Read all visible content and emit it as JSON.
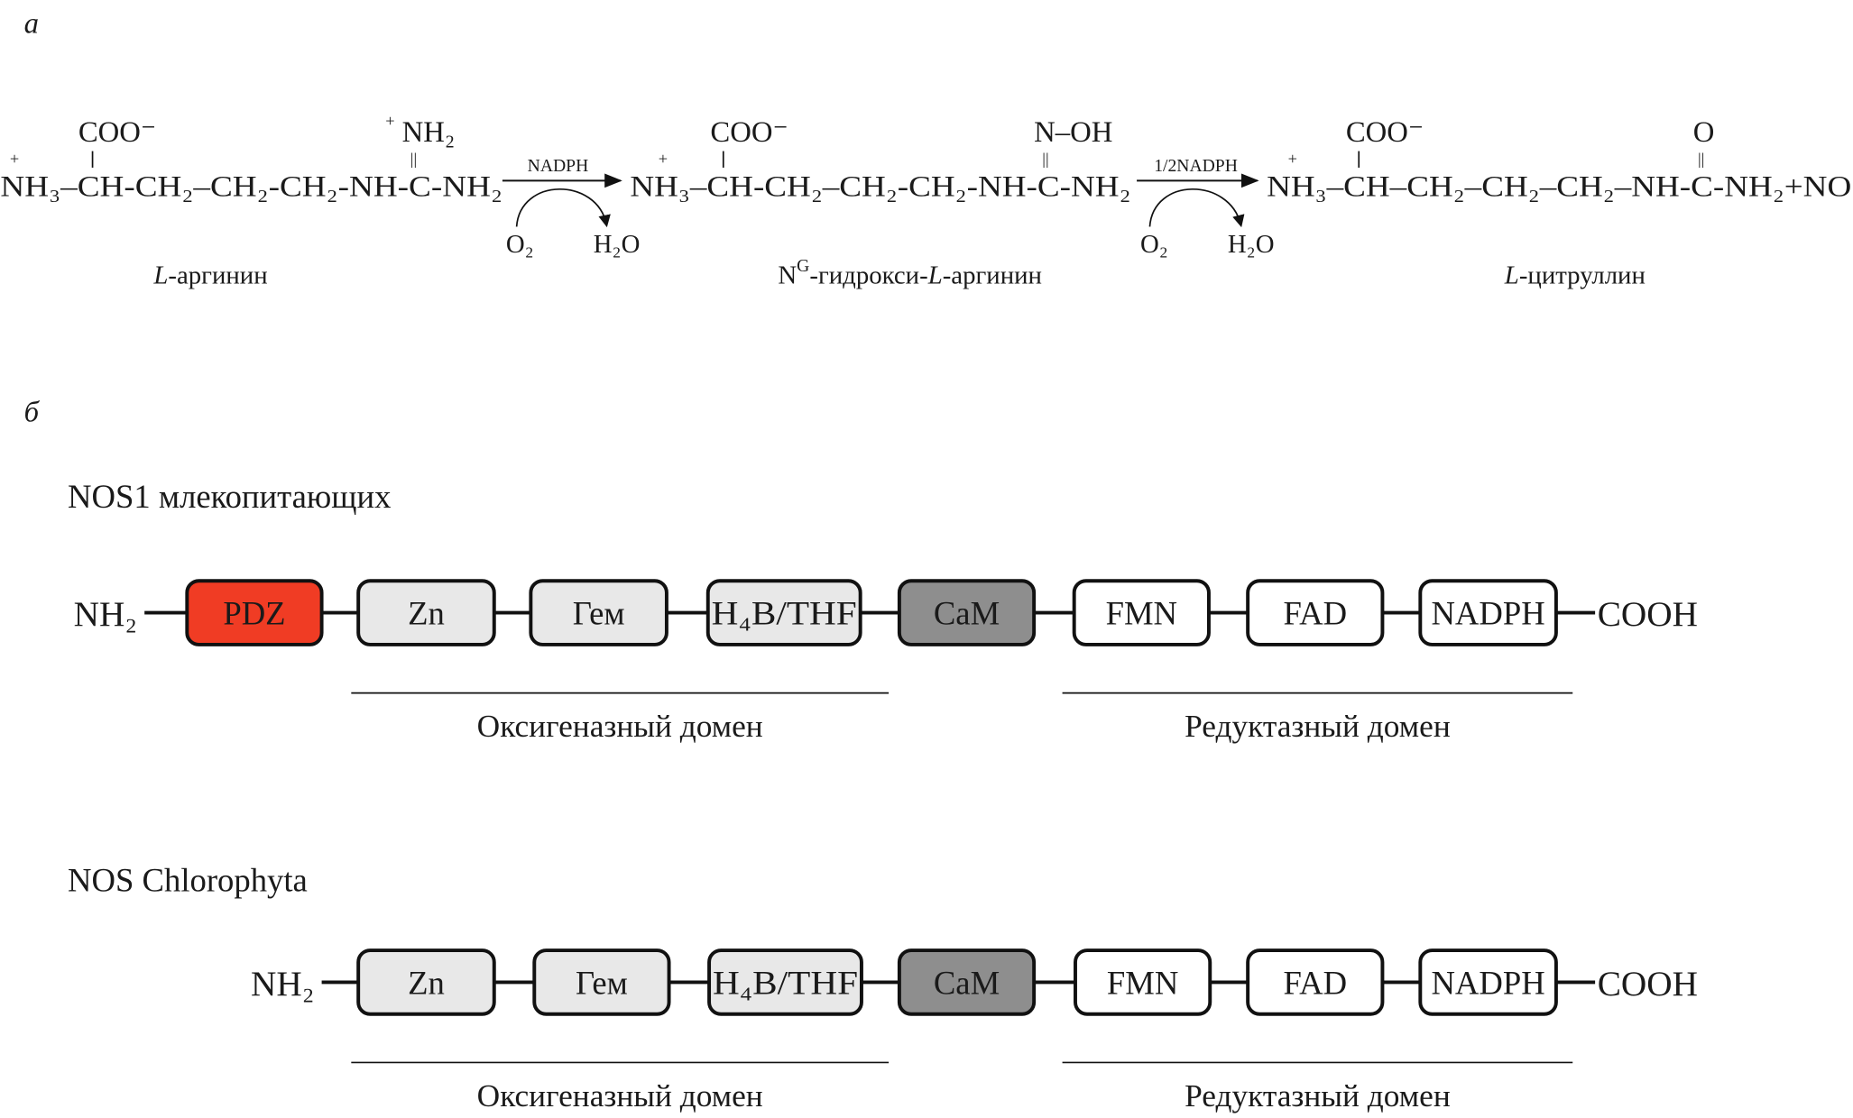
{
  "panel_a": {
    "label": "а",
    "molecules": [
      {
        "chain": "NH₃–CH-CH₂–CH₂-CH₂-NH-C-NH₂",
        "plus": "+",
        "top_left": "COO⁻",
        "top_right_plus": "+",
        "top_right": "NH₂",
        "bond": "||",
        "name": {
          "italic": "L",
          "rest": "-аргинин"
        }
      },
      {
        "chain": "NH₃–CH-CH₂–CH₂-CH₂-NH-C-NH₂",
        "plus": "+",
        "top_left": "COO⁻",
        "top_right": "N–OH",
        "bond": "||",
        "name": {
          "prefix": "N",
          "sup": "G",
          "mid": "-гидрокси-",
          "italic": "L",
          "rest": "-аргинин"
        }
      },
      {
        "chain": "NH₃–CH–CH₂–CH₂–CH₂–NH-C-NH₂+NO",
        "plus": "+",
        "top_left": "COO⁻",
        "top_right": "O",
        "bond": "||",
        "name": {
          "italic": "L",
          "rest": "-цитруллин"
        }
      }
    ],
    "reactions": [
      {
        "cofactor": "NADPH",
        "in": "O₂",
        "out": "H₂O"
      },
      {
        "cofactor": "1/2NADPH",
        "in": "O₂",
        "out": "H₂O"
      }
    ]
  },
  "panel_b": {
    "label": "б",
    "colors": {
      "pdz": "#f03c24",
      "light": "#e8e8e8",
      "cam": "#8e8e8e",
      "white": "#ffffff"
    },
    "proteins": [
      {
        "title": "NOS1 млекопитающих",
        "n_term": "NH₂",
        "c_term": "COOH",
        "domains": [
          "PDZ",
          "Zn",
          "Гем",
          "H₄B/THF",
          "CaM",
          "FMN",
          "FAD",
          "NADPH"
        ],
        "groups": [
          "Оксигеназный домен",
          "Редуктазный домен"
        ]
      },
      {
        "title": "NOS Chlorophyta",
        "n_term": "NH₂",
        "c_term": "COOH",
        "domains": [
          "Zn",
          "Гем",
          "H₄B/THF",
          "CaM",
          "FMN",
          "FAD",
          "NADPH"
        ],
        "groups": [
          "Оксигеназный домен",
          "Редуктазный домен"
        ]
      }
    ]
  }
}
